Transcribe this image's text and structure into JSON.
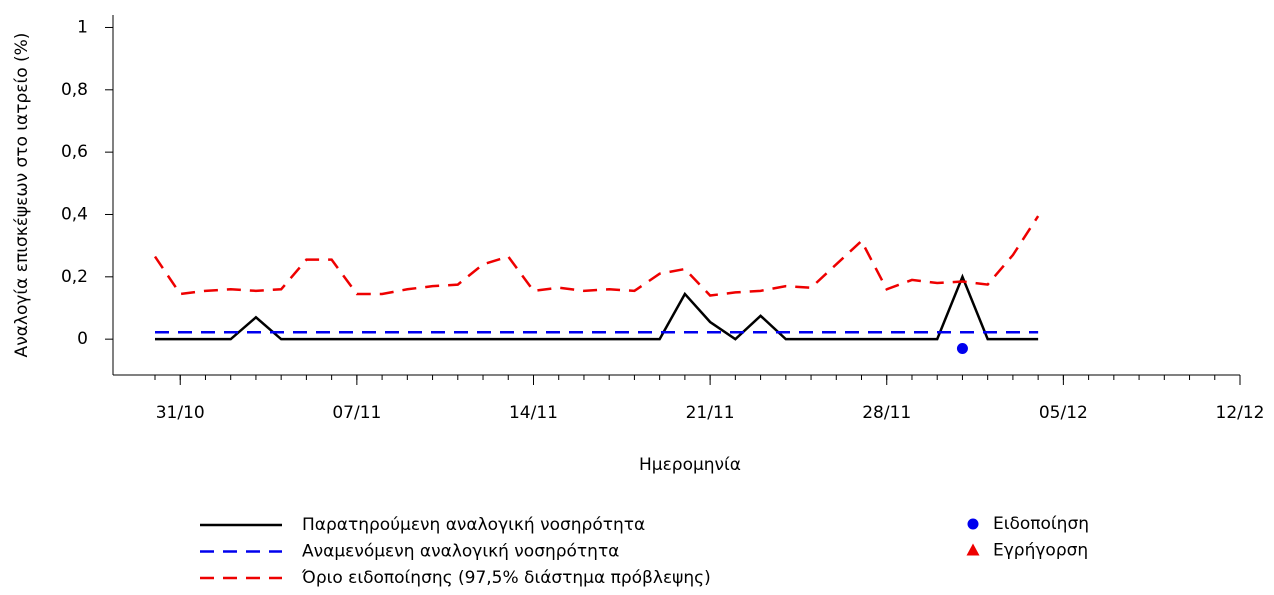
{
  "chart_data": {
    "type": "line",
    "y_label": "Αναλογία επισκέψεων στο ιατρείο (%)",
    "x_label": "Ημερομηνία",
    "x": [
      "30/10",
      "31/10",
      "01/11",
      "02/11",
      "03/11",
      "04/11",
      "05/11",
      "06/11",
      "07/11",
      "08/11",
      "09/11",
      "10/11",
      "11/11",
      "12/11",
      "13/11",
      "14/11",
      "15/11",
      "16/11",
      "17/11",
      "18/11",
      "19/11",
      "20/11",
      "21/11",
      "22/11",
      "23/11",
      "24/11",
      "25/11",
      "26/11",
      "27/11",
      "28/11",
      "29/11",
      "30/11",
      "01/12",
      "02/12",
      "03/12",
      "04/12"
    ],
    "series": [
      {
        "name": "Παρατηρούμενη αναλογική νοσηρότητα",
        "color": "#000000",
        "dash": false,
        "values": [
          0,
          0,
          0,
          0,
          0.07,
          0,
          0,
          0,
          0,
          0,
          0,
          0,
          0,
          0,
          0,
          0,
          0,
          0,
          0,
          0,
          0,
          0.145,
          0.055,
          0,
          0.075,
          0,
          0,
          0,
          0,
          0,
          0,
          0,
          0.2,
          0,
          0,
          0
        ]
      },
      {
        "name": "Αναμενόμενη αναλογική νοσηρότητα",
        "color": "#0000ee",
        "dash": true,
        "values": [
          0.022,
          0.022,
          0.022,
          0.022,
          0.022,
          0.022,
          0.022,
          0.022,
          0.022,
          0.022,
          0.022,
          0.022,
          0.022,
          0.022,
          0.022,
          0.022,
          0.022,
          0.022,
          0.022,
          0.022,
          0.022,
          0.022,
          0.022,
          0.022,
          0.022,
          0.022,
          0.022,
          0.022,
          0.022,
          0.022,
          0.022,
          0.022,
          0.022,
          0.022,
          0.022,
          0.022
        ]
      },
      {
        "name": "Όριο ειδοποίησης (97,5% διάστημα πρόβλεψης)",
        "color": "#ee0000",
        "dash": true,
        "values": [
          0.265,
          0.145,
          0.155,
          0.16,
          0.155,
          0.16,
          0.255,
          0.255,
          0.145,
          0.145,
          0.16,
          0.17,
          0.175,
          0.24,
          0.265,
          0.155,
          0.165,
          0.155,
          0.16,
          0.155,
          0.21,
          0.225,
          0.14,
          0.15,
          0.155,
          0.17,
          0.165,
          0.24,
          0.315,
          0.16,
          0.19,
          0.18,
          0.185,
          0.175,
          0.27,
          0.395
        ]
      }
    ],
    "points": [
      {
        "name": "Ειδοποίηση",
        "color": "#0000ee",
        "marker": "circle",
        "x": [
          "01/12"
        ],
        "values": [
          -0.03
        ]
      },
      {
        "name": "Εγρήγορση",
        "color": "#ee0000",
        "marker": "triangle",
        "x": [],
        "values": []
      }
    ],
    "xlim": [
      "30/10",
      "12/12"
    ],
    "xticks": [
      "31/10",
      "07/11",
      "14/11",
      "21/11",
      "28/11",
      "05/12",
      "12/12"
    ],
    "ylim": [
      -0.115,
      1.04
    ],
    "yticks": [
      0,
      {
        "value": 0.2,
        "label": "0,2"
      },
      {
        "value": 0.4,
        "label": "0,4"
      },
      {
        "value": 0.6,
        "label": "0,6"
      },
      {
        "value": 0.8,
        "label": "0,8"
      },
      1
    ]
  }
}
